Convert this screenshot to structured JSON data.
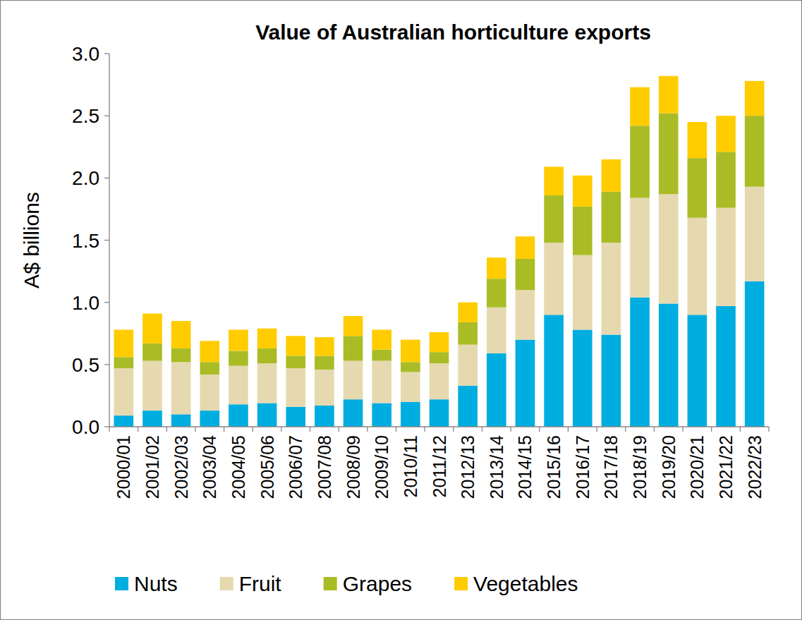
{
  "chart_data": {
    "type": "bar",
    "title": "Value of Australian horticulture exports",
    "y_label": "A$ billions",
    "stacked": true,
    "grid": false,
    "legend": "bottom",
    "categories": [
      "2000/01",
      "2001/02",
      "2002/03",
      "2003/04",
      "2004/05",
      "2005/06",
      "2006/07",
      "2007/08",
      "2008/09",
      "2009/10",
      "2010/11",
      "2011/12",
      "2012/13",
      "2013/14",
      "2014/15",
      "2015/16",
      "2016/17",
      "2017/18",
      "2018/19",
      "2019/20",
      "2020/21",
      "2021/22",
      "2022/23"
    ],
    "series": [
      {
        "name": "Nuts",
        "color": "#00ADE0",
        "values": [
          0.09,
          0.13,
          0.1,
          0.13,
          0.18,
          0.19,
          0.16,
          0.17,
          0.22,
          0.19,
          0.2,
          0.22,
          0.33,
          0.59,
          0.7,
          0.9,
          0.78,
          0.74,
          1.04,
          0.99,
          0.9,
          0.97,
          1.17
        ]
      },
      {
        "name": "Fruit",
        "color": "#E6D9B0",
        "values": [
          0.38,
          0.4,
          0.42,
          0.29,
          0.31,
          0.32,
          0.31,
          0.29,
          0.31,
          0.34,
          0.24,
          0.29,
          0.33,
          0.37,
          0.4,
          0.58,
          0.6,
          0.74,
          0.8,
          0.88,
          0.78,
          0.79,
          0.76
        ]
      },
      {
        "name": "Grapes",
        "color": "#A9BC26",
        "values": [
          0.09,
          0.14,
          0.11,
          0.1,
          0.12,
          0.12,
          0.1,
          0.11,
          0.2,
          0.09,
          0.08,
          0.09,
          0.18,
          0.23,
          0.25,
          0.38,
          0.39,
          0.41,
          0.58,
          0.65,
          0.48,
          0.45,
          0.57
        ]
      },
      {
        "name": "Vegetables",
        "color": "#FFCC00",
        "values": [
          0.22,
          0.24,
          0.22,
          0.17,
          0.17,
          0.16,
          0.16,
          0.15,
          0.16,
          0.16,
          0.18,
          0.16,
          0.16,
          0.17,
          0.18,
          0.23,
          0.25,
          0.26,
          0.31,
          0.3,
          0.29,
          0.29,
          0.28
        ]
      }
    ],
    "ylim": [
      0,
      3
    ],
    "yticks": [
      {
        "value": 0,
        "label": "0.0"
      },
      0.5,
      {
        "value": 1,
        "label": "1.0"
      },
      1.5,
      {
        "value": 2,
        "label": "2.0"
      },
      2.5,
      {
        "value": 3,
        "label": "3.0"
      }
    ]
  }
}
